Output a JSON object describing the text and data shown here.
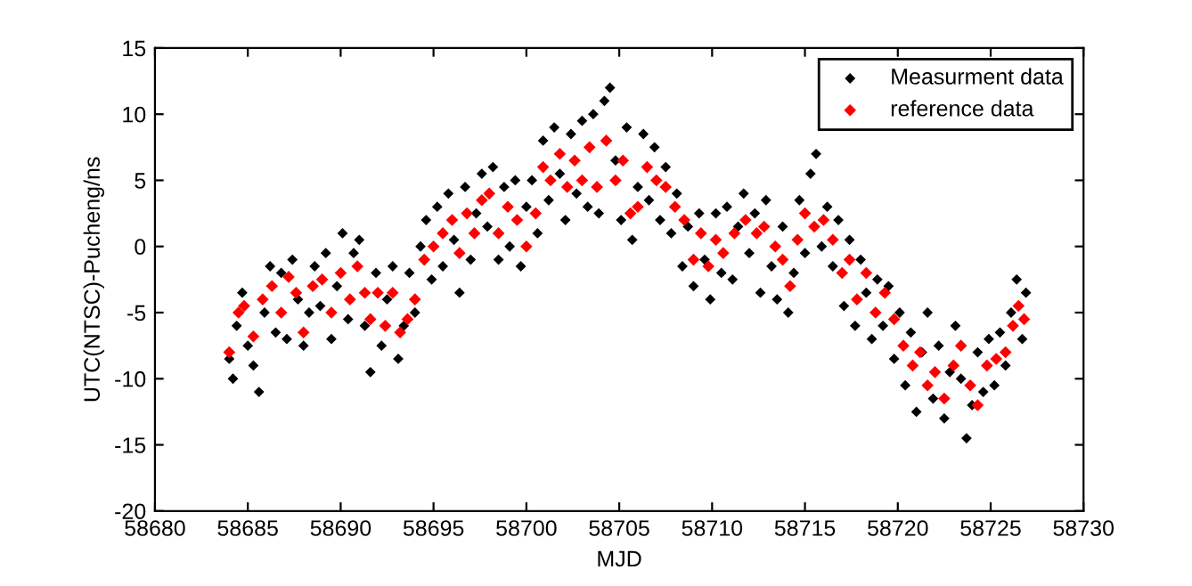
{
  "chart_data": {
    "type": "scatter",
    "xlabel": "MJD",
    "ylabel": "UTC(NTSC)-Pucheng/ns",
    "xlim": [
      58680,
      58730
    ],
    "xticks": [
      58680,
      58685,
      58690,
      58695,
      58700,
      58705,
      58710,
      58715,
      58720,
      58725,
      58730
    ],
    "ylim": [
      -20,
      15
    ],
    "yticks": [
      -20,
      -15,
      -10,
      -5,
      0,
      5,
      10,
      15
    ],
    "grid": false,
    "legend": "top right",
    "marker": "diamond",
    "series": [
      {
        "name": "Measurment data",
        "color": "#000000",
        "x": [
          58684.0,
          58684.2,
          58684.4,
          58684.7,
          58685.0,
          58685.3,
          58685.6,
          58685.9,
          58686.2,
          58686.5,
          58686.8,
          58687.1,
          58687.4,
          58687.7,
          58688.0,
          58688.3,
          58688.6,
          58688.9,
          58689.2,
          58689.5,
          58689.8,
          58690.1,
          58690.4,
          58690.7,
          58691.0,
          58691.3,
          58691.6,
          58691.9,
          58692.2,
          58692.5,
          58692.8,
          58693.1,
          58693.4,
          58693.7,
          58694.0,
          58694.3,
          58694.6,
          58694.9,
          58695.2,
          58695.5,
          58695.8,
          58696.1,
          58696.4,
          58696.7,
          58697.0,
          58697.3,
          58697.6,
          58697.9,
          58698.2,
          58698.5,
          58698.8,
          58699.1,
          58699.4,
          58699.7,
          58700.0,
          58700.3,
          58700.6,
          58700.9,
          58701.2,
          58701.5,
          58701.8,
          58702.1,
          58702.4,
          58702.7,
          58703.0,
          58703.3,
          58703.6,
          58703.9,
          58704.2,
          58704.5,
          58704.8,
          58705.1,
          58705.4,
          58705.7,
          58706.0,
          58706.3,
          58706.6,
          58706.9,
          58707.2,
          58707.5,
          58707.8,
          58708.1,
          58708.4,
          58708.7,
          58709.0,
          58709.3,
          58709.6,
          58709.9,
          58710.2,
          58710.5,
          58710.8,
          58711.1,
          58711.4,
          58711.7,
          58712.0,
          58712.3,
          58712.6,
          58712.9,
          58713.2,
          58713.5,
          58713.8,
          58714.1,
          58714.4,
          58714.7,
          58715.0,
          58715.3,
          58715.6,
          58715.9,
          58716.2,
          58716.5,
          58716.8,
          58717.1,
          58717.4,
          58717.7,
          58718.0,
          58718.3,
          58718.6,
          58718.9,
          58719.2,
          58719.5,
          58719.8,
          58720.1,
          58720.4,
          58720.7,
          58721.0,
          58721.3,
          58721.6,
          58721.9,
          58722.2,
          58722.5,
          58722.8,
          58723.1,
          58723.4,
          58723.7,
          58724.0,
          58724.3,
          58724.6,
          58724.9,
          58725.2,
          58725.5,
          58725.8,
          58726.1,
          58726.4,
          58726.7,
          58726.9
        ],
        "values": [
          -8.5,
          -10,
          -6,
          -3.5,
          -7.5,
          -9,
          -11,
          -5,
          -1.5,
          -6.5,
          -2,
          -7,
          -1,
          -4,
          -7.5,
          -5,
          -1.5,
          -4.5,
          -0.5,
          -7,
          -3,
          1,
          -5.5,
          -0.5,
          0.5,
          -6,
          -9.5,
          -2,
          -7.5,
          -4,
          -1.5,
          -8.5,
          -6,
          -2,
          -5,
          0,
          2,
          -2.5,
          3,
          -1.5,
          4,
          0.5,
          -3.5,
          4.5,
          -1,
          2.5,
          5.5,
          1.5,
          6,
          -1,
          4.5,
          0,
          5,
          -1.5,
          3,
          5,
          1,
          8,
          3.5,
          9,
          5.5,
          2,
          8.5,
          4,
          9.5,
          3,
          10,
          2.5,
          11,
          12,
          6.5,
          2,
          9,
          0.5,
          4.5,
          8.5,
          3.5,
          7.5,
          2,
          6,
          1,
          4,
          -1.5,
          1.5,
          -3,
          2.5,
          -1,
          -4,
          2.5,
          -2,
          3,
          -2.5,
          1.5,
          4,
          -0.5,
          2.5,
          -3.5,
          3.5,
          -1.5,
          -4,
          1.5,
          -5,
          -2,
          3.5,
          -0.5,
          5.5,
          7,
          0,
          3,
          -1.5,
          2,
          -4.5,
          0.5,
          -6,
          -1,
          -3.5,
          -7,
          -2.5,
          -6,
          -3,
          -8.5,
          -5,
          -10.5,
          -6.5,
          -12.5,
          -8,
          -5,
          -11.5,
          -7.5,
          -13,
          -9.5,
          -6,
          -10,
          -14.5,
          -12,
          -8,
          -11,
          -7,
          -10.5,
          -6.5,
          -9,
          -5,
          -2.5,
          -7,
          -3.5
        ]
      },
      {
        "name": "reference data",
        "color": "#ff0000",
        "x": [
          58684.0,
          58684.5,
          58684.8,
          58685.3,
          58685.8,
          58686.3,
          58686.8,
          58687.2,
          58687.6,
          58688.0,
          58688.5,
          58689.0,
          58689.5,
          58690.0,
          58690.5,
          58690.9,
          58691.3,
          58691.6,
          58692.0,
          58692.4,
          58692.8,
          58693.2,
          58693.6,
          58694.0,
          58694.5,
          58695.0,
          58695.5,
          58696.0,
          58696.4,
          58696.8,
          58697.2,
          58697.6,
          58698.0,
          58698.5,
          58699.0,
          58699.5,
          58700.0,
          58700.5,
          58700.9,
          58701.3,
          58701.8,
          58702.2,
          58702.6,
          58703.0,
          58703.4,
          58703.8,
          58704.3,
          58704.8,
          58705.2,
          58705.6,
          58706.0,
          58706.5,
          58707.0,
          58707.5,
          58708.0,
          58708.5,
          58709.0,
          58709.4,
          58709.8,
          58710.2,
          58710.6,
          58711.2,
          58711.8,
          58712.4,
          58712.8,
          58713.4,
          58713.8,
          58714.2,
          58714.6,
          58715.0,
          58715.5,
          58716.0,
          58716.5,
          58717.0,
          58717.4,
          58717.8,
          58718.3,
          58718.8,
          58719.3,
          58719.8,
          58720.3,
          58720.8,
          58721.2,
          58721.6,
          58722.0,
          58722.5,
          58723.0,
          58723.4,
          58723.9,
          58724.3,
          58724.8,
          58725.3,
          58725.8,
          58726.2,
          58726.5,
          58726.8
        ],
        "values": [
          -8,
          -5,
          -4.5,
          -6.8,
          -4,
          -3,
          -5,
          -2.3,
          -3.5,
          -6.5,
          -3,
          -2.5,
          -5,
          -2,
          -4,
          -1.5,
          -3.5,
          -5.5,
          -3.5,
          -6,
          -3.5,
          -6.5,
          -5.5,
          -4,
          -1,
          0,
          1,
          2,
          -0.5,
          2.5,
          1,
          3.5,
          4,
          1,
          3,
          2,
          0,
          2.5,
          6,
          5,
          7,
          4.5,
          6.5,
          5,
          7.5,
          4.5,
          8,
          5,
          6.5,
          2.5,
          3,
          6,
          5,
          4.5,
          3,
          2,
          -1,
          1,
          -1.5,
          0.5,
          -0.5,
          1,
          2,
          1,
          1.5,
          0,
          -1,
          -3,
          0.5,
          2.5,
          1.5,
          2,
          0.5,
          -2,
          -1,
          -4,
          -2,
          -5,
          -3.5,
          -5.5,
          -7.5,
          -9,
          -8,
          -10.5,
          -9.5,
          -11.5,
          -9,
          -7.5,
          -10.5,
          -12,
          -9,
          -8.5,
          -8,
          -6,
          -4.5,
          -5.5
        ]
      }
    ]
  }
}
